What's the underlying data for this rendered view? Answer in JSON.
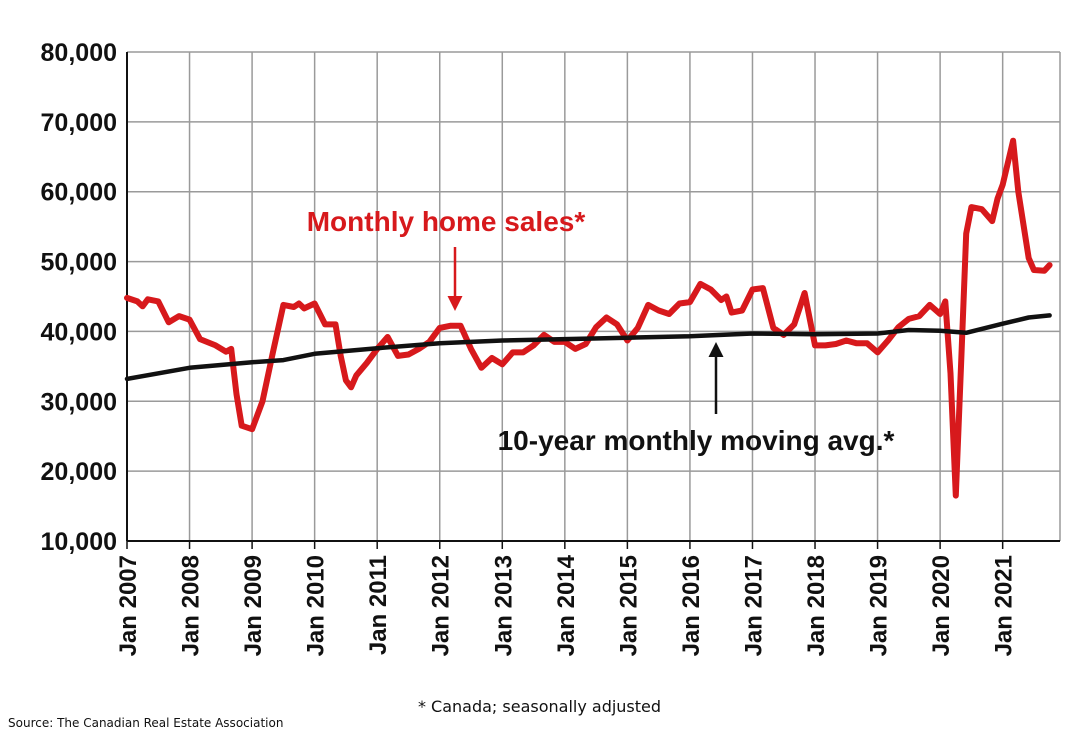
{
  "chart_data": {
    "type": "line",
    "title": "",
    "xlabel": "",
    "ylabel": "",
    "ylim": [
      10000,
      80000
    ],
    "y_ticks": [
      "10,000",
      "20,000",
      "30,000",
      "40,000",
      "50,000",
      "60,000",
      "70,000",
      "80,000"
    ],
    "x_range": [
      "2007-01",
      "2021-12"
    ],
    "x_ticks": [
      "Jan 2007",
      "Jan 2008",
      "Jan 2009",
      "Jan 2010",
      "Jan 2011",
      "Jan 2012",
      "Jan 2013",
      "Jan 2014",
      "Jan 2015",
      "Jan 2016",
      "Jan 2017",
      "Jan 2018",
      "Jan 2019",
      "Jan 2020",
      "Jan 2021"
    ],
    "grid": true,
    "legend": "none",
    "colors": {
      "sales": "#d7191c",
      "average": "#111111",
      "grid": "#9a9a9a"
    },
    "series": [
      {
        "name": "Monthly home sales*",
        "color": "#d7191c",
        "points": [
          [
            "2007-01",
            44800
          ],
          [
            "2007-03",
            44300
          ],
          [
            "2007-04",
            43600
          ],
          [
            "2007-05",
            44600
          ],
          [
            "2007-07",
            44300
          ],
          [
            "2007-09",
            41300
          ],
          [
            "2007-11",
            42200
          ],
          [
            "2008-01",
            41700
          ],
          [
            "2008-03",
            38900
          ],
          [
            "2008-06",
            38000
          ],
          [
            "2008-08",
            37100
          ],
          [
            "2008-09",
            37500
          ],
          [
            "2008-10",
            31000
          ],
          [
            "2008-11",
            26500
          ],
          [
            "2009-01",
            26000
          ],
          [
            "2009-03",
            30000
          ],
          [
            "2009-05",
            37000
          ],
          [
            "2009-07",
            43800
          ],
          [
            "2009-09",
            43500
          ],
          [
            "2009-10",
            44000
          ],
          [
            "2009-11",
            43300
          ],
          [
            "2010-01",
            44000
          ],
          [
            "2010-02",
            42500
          ],
          [
            "2010-03",
            41000
          ],
          [
            "2010-05",
            41000
          ],
          [
            "2010-06",
            36500
          ],
          [
            "2010-07",
            33000
          ],
          [
            "2010-08",
            32000
          ],
          [
            "2010-09",
            33700
          ],
          [
            "2010-11",
            35500
          ],
          [
            "2011-01",
            37500
          ],
          [
            "2011-03",
            39200
          ],
          [
            "2011-05",
            36500
          ],
          [
            "2011-07",
            36700
          ],
          [
            "2011-09",
            37500
          ],
          [
            "2011-11",
            38500
          ],
          [
            "2012-01",
            40500
          ],
          [
            "2012-03",
            40800
          ],
          [
            "2012-05",
            40800
          ],
          [
            "2012-07",
            37500
          ],
          [
            "2012-09",
            34800
          ],
          [
            "2012-11",
            36200
          ],
          [
            "2013-01",
            35300
          ],
          [
            "2013-03",
            37000
          ],
          [
            "2013-05",
            37000
          ],
          [
            "2013-07",
            38000
          ],
          [
            "2013-09",
            39500
          ],
          [
            "2013-11",
            38500
          ],
          [
            "2014-01",
            38500
          ],
          [
            "2014-03",
            37500
          ],
          [
            "2014-05",
            38200
          ],
          [
            "2014-07",
            40600
          ],
          [
            "2014-09",
            42000
          ],
          [
            "2014-11",
            41000
          ],
          [
            "2015-01",
            38700
          ],
          [
            "2015-03",
            40500
          ],
          [
            "2015-05",
            43800
          ],
          [
            "2015-07",
            43000
          ],
          [
            "2015-09",
            42500
          ],
          [
            "2015-11",
            44000
          ],
          [
            "2016-01",
            44200
          ],
          [
            "2016-03",
            46800
          ],
          [
            "2016-05",
            46000
          ],
          [
            "2016-07",
            44500
          ],
          [
            "2016-08",
            45000
          ],
          [
            "2016-09",
            42700
          ],
          [
            "2016-11",
            43000
          ],
          [
            "2017-01",
            46000
          ],
          [
            "2017-03",
            46200
          ],
          [
            "2017-05",
            40500
          ],
          [
            "2017-07",
            39500
          ],
          [
            "2017-09",
            41000
          ],
          [
            "2017-11",
            45500
          ],
          [
            "2018-01",
            38000
          ],
          [
            "2018-03",
            38000
          ],
          [
            "2018-05",
            38200
          ],
          [
            "2018-07",
            38700
          ],
          [
            "2018-09",
            38300
          ],
          [
            "2018-11",
            38300
          ],
          [
            "2019-01",
            37000
          ],
          [
            "2019-03",
            38700
          ],
          [
            "2019-05",
            40600
          ],
          [
            "2019-07",
            41800
          ],
          [
            "2019-09",
            42200
          ],
          [
            "2019-11",
            43800
          ],
          [
            "2020-01",
            42500
          ],
          [
            "2020-02",
            44300
          ],
          [
            "2020-03",
            34000
          ],
          [
            "2020-04",
            16500
          ],
          [
            "2020-05",
            35000
          ],
          [
            "2020-06",
            54000
          ],
          [
            "2020-07",
            57800
          ],
          [
            "2020-09",
            57500
          ],
          [
            "2020-11",
            55800
          ],
          [
            "2020-12",
            59000
          ],
          [
            "2021-01",
            61000
          ],
          [
            "2021-03",
            67300
          ],
          [
            "2021-04",
            60000
          ],
          [
            "2021-06",
            50500
          ],
          [
            "2021-07",
            48800
          ],
          [
            "2021-09",
            48700
          ],
          [
            "2021-10",
            49500
          ]
        ]
      },
      {
        "name": "10-year monthly moving avg.*",
        "color": "#111111",
        "points": [
          [
            "2007-01",
            33200
          ],
          [
            "2008-01",
            34800
          ],
          [
            "2009-01",
            35600
          ],
          [
            "2009-07",
            35900
          ],
          [
            "2010-01",
            36800
          ],
          [
            "2011-01",
            37600
          ],
          [
            "2012-01",
            38300
          ],
          [
            "2013-01",
            38700
          ],
          [
            "2014-01",
            38900
          ],
          [
            "2015-01",
            39100
          ],
          [
            "2016-01",
            39300
          ],
          [
            "2017-01",
            39700
          ],
          [
            "2018-01",
            39600
          ],
          [
            "2019-01",
            39700
          ],
          [
            "2019-07",
            40200
          ],
          [
            "2020-01",
            40100
          ],
          [
            "2020-06",
            39800
          ],
          [
            "2021-01",
            41100
          ],
          [
            "2021-06",
            42000
          ],
          [
            "2021-10",
            42300
          ]
        ]
      }
    ],
    "annotations": [
      {
        "text": "Monthly home sales*",
        "series": "Monthly home sales*",
        "arrow_to": [
          "2012-03",
          41500
        ]
      },
      {
        "text": "10-year monthly moving avg.*",
        "series": "10-year monthly moving avg.*",
        "arrow_to": [
          "2016-06",
          40200
        ]
      }
    ]
  },
  "footnote": "* Canada; seasonally adjusted",
  "source": "Source: The Canadian Real Estate Association"
}
